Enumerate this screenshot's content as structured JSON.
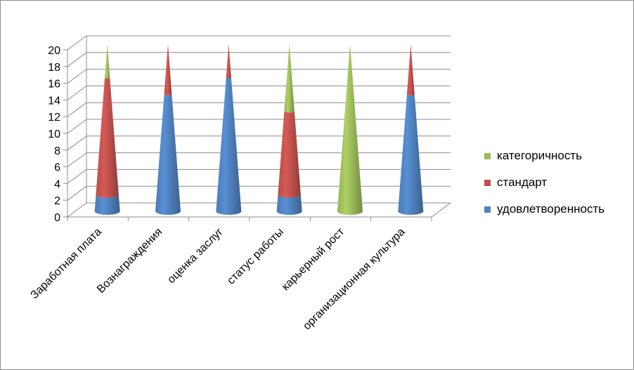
{
  "chart_data": {
    "type": "bar",
    "subtype": "stacked-3d-cone",
    "categories": [
      "Заработная плата",
      "Вознаграждения",
      "оценка заслуг",
      "статус работы",
      "карьерный рост",
      "организационная культура"
    ],
    "series": [
      {
        "name": "удовлетворенность",
        "color": "#4f81bd",
        "values": [
          2,
          14,
          16,
          2,
          0,
          14
        ]
      },
      {
        "name": "стандарт",
        "color": "#c0504d",
        "values": [
          14,
          6,
          4,
          10,
          0,
          6
        ]
      },
      {
        "name": "категоричность",
        "color": "#9bbb59",
        "values": [
          4,
          0,
          0,
          8,
          20,
          0
        ]
      }
    ],
    "yticks": [
      "0",
      "2",
      "4",
      "6",
      "8",
      "10",
      "12",
      "14",
      "16",
      "18",
      "20"
    ],
    "ylim": [
      0,
      20
    ],
    "grid": true,
    "legend_position": "right",
    "legend_order": [
      "категоричность",
      "стандарт",
      "удовлетворенность"
    ]
  }
}
